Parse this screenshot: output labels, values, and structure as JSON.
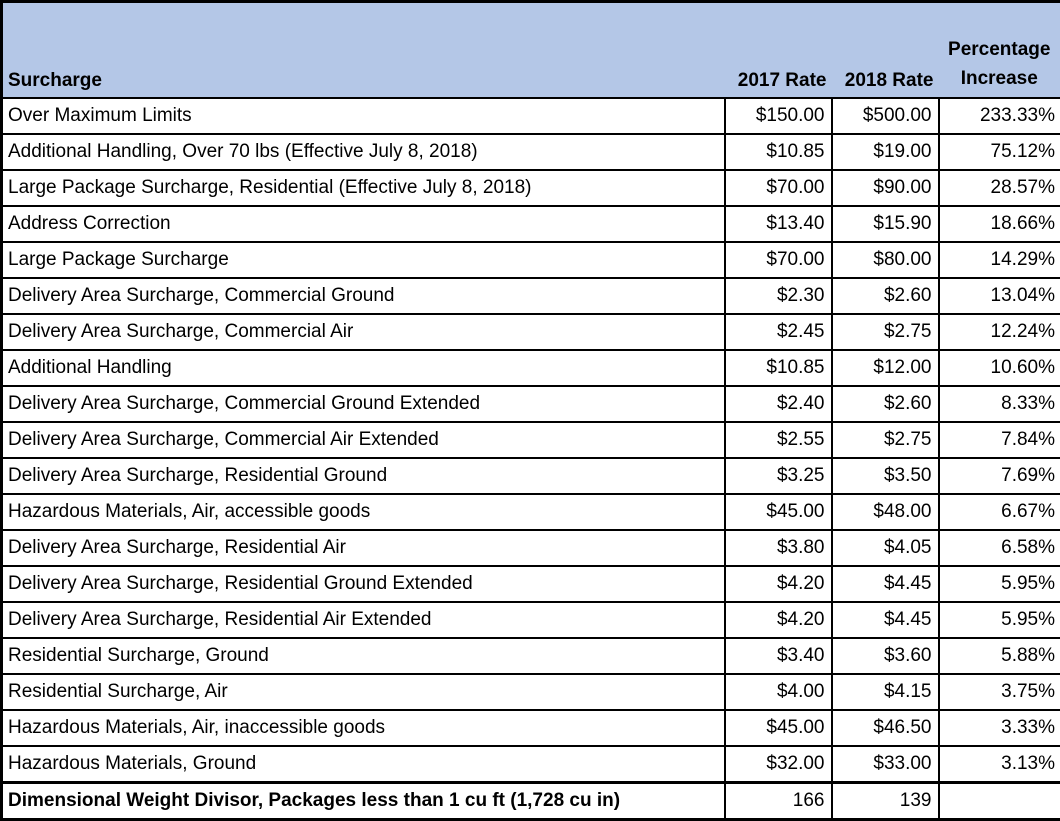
{
  "colors": {
    "header_bg": "#B4C7E7",
    "border": "#000000",
    "row_bg": "#FFFFFF",
    "text": "#000000"
  },
  "chart_data": {
    "type": "table",
    "title": "",
    "columns": [
      "Surcharge",
      "2017 Rate",
      "2018 Rate",
      "Percentage Increase"
    ],
    "header": {
      "surcharge": "Surcharge",
      "rate_2017": "2017 Rate",
      "rate_2018": "2018 Rate",
      "pct_line1": "Percentage",
      "pct_line2": "Increase"
    },
    "rows": [
      {
        "surcharge": "Over Maximum Limits",
        "rate_2017": "$150.00",
        "rate_2018": "$500.00",
        "pct_increase": "233.33%",
        "emphasis": false
      },
      {
        "surcharge": "Additional Handling, Over 70 lbs (Effective July 8, 2018)",
        "rate_2017": "$10.85",
        "rate_2018": "$19.00",
        "pct_increase": "75.12%",
        "emphasis": false
      },
      {
        "surcharge": "Large Package Surcharge, Residential (Effective July 8, 2018)",
        "rate_2017": "$70.00",
        "rate_2018": "$90.00",
        "pct_increase": "28.57%",
        "emphasis": false
      },
      {
        "surcharge": "Address Correction",
        "rate_2017": "$13.40",
        "rate_2018": "$15.90",
        "pct_increase": "18.66%",
        "emphasis": false
      },
      {
        "surcharge": "Large Package Surcharge",
        "rate_2017": "$70.00",
        "rate_2018": "$80.00",
        "pct_increase": "14.29%",
        "emphasis": false
      },
      {
        "surcharge": "Delivery Area Surcharge, Commercial Ground",
        "rate_2017": "$2.30",
        "rate_2018": "$2.60",
        "pct_increase": "13.04%",
        "emphasis": false
      },
      {
        "surcharge": "Delivery Area Surcharge, Commercial Air",
        "rate_2017": "$2.45",
        "rate_2018": "$2.75",
        "pct_increase": "12.24%",
        "emphasis": false
      },
      {
        "surcharge": "Additional Handling",
        "rate_2017": "$10.85",
        "rate_2018": "$12.00",
        "pct_increase": "10.60%",
        "emphasis": false
      },
      {
        "surcharge": "Delivery Area Surcharge, Commercial Ground Extended",
        "rate_2017": "$2.40",
        "rate_2018": "$2.60",
        "pct_increase": "8.33%",
        "emphasis": false
      },
      {
        "surcharge": "Delivery Area Surcharge, Commercial Air Extended",
        "rate_2017": "$2.55",
        "rate_2018": "$2.75",
        "pct_increase": "7.84%",
        "emphasis": false
      },
      {
        "surcharge": "Delivery Area Surcharge, Residential Ground",
        "rate_2017": "$3.25",
        "rate_2018": "$3.50",
        "pct_increase": "7.69%",
        "emphasis": false
      },
      {
        "surcharge": "Hazardous Materials, Air, accessible goods",
        "rate_2017": "$45.00",
        "rate_2018": "$48.00",
        "pct_increase": "6.67%",
        "emphasis": false
      },
      {
        "surcharge": "Delivery Area Surcharge, Residential Air",
        "rate_2017": "$3.80",
        "rate_2018": "$4.05",
        "pct_increase": "6.58%",
        "emphasis": false
      },
      {
        "surcharge": "Delivery Area Surcharge, Residential Ground Extended",
        "rate_2017": "$4.20",
        "rate_2018": "$4.45",
        "pct_increase": "5.95%",
        "emphasis": false
      },
      {
        "surcharge": "Delivery Area Surcharge, Residential Air Extended",
        "rate_2017": "$4.20",
        "rate_2018": "$4.45",
        "pct_increase": "5.95%",
        "emphasis": false
      },
      {
        "surcharge": "Residential Surcharge, Ground",
        "rate_2017": "$3.40",
        "rate_2018": "$3.60",
        "pct_increase": "5.88%",
        "emphasis": false
      },
      {
        "surcharge": "Residential Surcharge, Air",
        "rate_2017": "$4.00",
        "rate_2018": "$4.15",
        "pct_increase": "3.75%",
        "emphasis": false
      },
      {
        "surcharge": "Hazardous Materials, Air, inaccessible goods",
        "rate_2017": "$45.00",
        "rate_2018": "$46.50",
        "pct_increase": "3.33%",
        "emphasis": false
      },
      {
        "surcharge": "Hazardous Materials, Ground",
        "rate_2017": "$32.00",
        "rate_2018": "$33.00",
        "pct_increase": "3.13%",
        "emphasis": false
      },
      {
        "surcharge": "Dimensional Weight Divisor, Packages less than 1 cu ft (1,728 cu in)",
        "rate_2017": "166",
        "rate_2018": "139",
        "pct_increase": "",
        "emphasis": true
      }
    ]
  }
}
